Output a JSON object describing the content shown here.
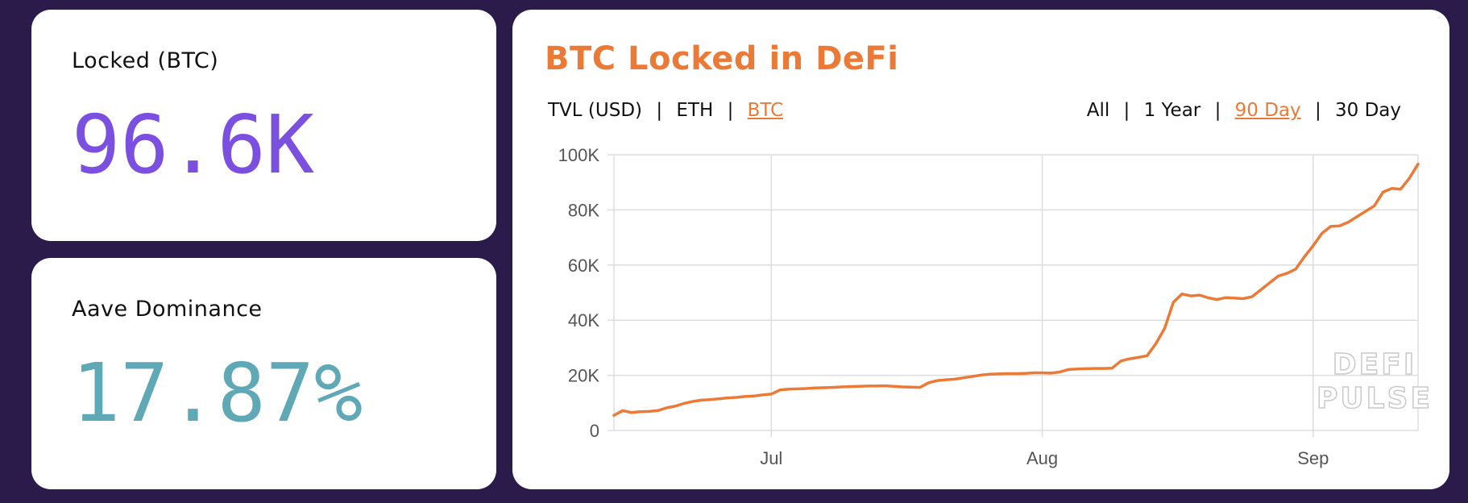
{
  "stats": {
    "locked": {
      "label": "Locked (BTC)",
      "value": "96.6K"
    },
    "dominance": {
      "label": "Aave Dominance",
      "value": "17.87%"
    }
  },
  "chart_header": {
    "title": "BTC Locked in DeFi",
    "units": [
      {
        "label": "TVL (USD)",
        "active": false
      },
      {
        "label": "ETH",
        "active": false
      },
      {
        "label": "BTC",
        "active": true
      }
    ],
    "ranges": [
      {
        "label": "All",
        "active": false
      },
      {
        "label": "1 Year",
        "active": false
      },
      {
        "label": "90 Day",
        "active": true
      },
      {
        "label": "30 Day",
        "active": false
      }
    ]
  },
  "colors": {
    "accent": "#ec7a37",
    "purple": "#7b4fe0",
    "teal": "#5fa8b5",
    "background": "#2a1b4b"
  },
  "watermark": [
    "DEFI",
    "PULSE"
  ],
  "chart_data": {
    "type": "line",
    "title": "BTC Locked in DeFi",
    "xlabel": "",
    "ylabel": "",
    "ylim": [
      0,
      100000
    ],
    "y_ticks": [
      0,
      20000,
      40000,
      60000,
      80000,
      100000
    ],
    "y_tick_labels": [
      "0",
      "20K",
      "40K",
      "60K",
      "80K",
      "100K"
    ],
    "x_ticks": [
      "2020-07-01",
      "2020-08-01",
      "2020-09-01"
    ],
    "x_tick_labels": [
      "Jul",
      "Aug",
      "Sep"
    ],
    "xlim": [
      "2020-06-13",
      "2020-09-13"
    ],
    "grid": true,
    "series": [
      {
        "color": "#ec7a37",
        "x": [
          "2020-06-13",
          "2020-06-14",
          "2020-06-15",
          "2020-06-16",
          "2020-06-17",
          "2020-06-18",
          "2020-06-19",
          "2020-06-20",
          "2020-06-21",
          "2020-06-22",
          "2020-06-23",
          "2020-06-24",
          "2020-06-25",
          "2020-06-26",
          "2020-06-27",
          "2020-06-28",
          "2020-06-29",
          "2020-06-30",
          "2020-07-01",
          "2020-07-02",
          "2020-07-03",
          "2020-07-04",
          "2020-07-05",
          "2020-07-06",
          "2020-07-07",
          "2020-07-08",
          "2020-07-09",
          "2020-07-10",
          "2020-07-11",
          "2020-07-12",
          "2020-07-13",
          "2020-07-14",
          "2020-07-15",
          "2020-07-16",
          "2020-07-17",
          "2020-07-18",
          "2020-07-19",
          "2020-07-20",
          "2020-07-21",
          "2020-07-22",
          "2020-07-23",
          "2020-07-24",
          "2020-07-25",
          "2020-07-26",
          "2020-07-27",
          "2020-07-28",
          "2020-07-29",
          "2020-07-30",
          "2020-07-31",
          "2020-08-01",
          "2020-08-02",
          "2020-08-03",
          "2020-08-04",
          "2020-08-05",
          "2020-08-06",
          "2020-08-07",
          "2020-08-08",
          "2020-08-09",
          "2020-08-10",
          "2020-08-11",
          "2020-08-12",
          "2020-08-13",
          "2020-08-14",
          "2020-08-15",
          "2020-08-16",
          "2020-08-17",
          "2020-08-18",
          "2020-08-19",
          "2020-08-20",
          "2020-08-21",
          "2020-08-22",
          "2020-08-23",
          "2020-08-24",
          "2020-08-25",
          "2020-08-26",
          "2020-08-27",
          "2020-08-28",
          "2020-08-29",
          "2020-08-30",
          "2020-08-31",
          "2020-09-01",
          "2020-09-02",
          "2020-09-03",
          "2020-09-04",
          "2020-09-05",
          "2020-09-06",
          "2020-09-07",
          "2020-09-08",
          "2020-09-09",
          "2020-09-10",
          "2020-09-11",
          "2020-09-12",
          "2020-09-13"
        ],
        "y": [
          5500,
          7200,
          6500,
          6800,
          6900,
          7200,
          8200,
          8800,
          9800,
          10500,
          11000,
          11200,
          11500,
          11800,
          12000,
          12300,
          12500,
          12900,
          13200,
          14700,
          15000,
          15100,
          15200,
          15400,
          15500,
          15600,
          15800,
          15900,
          16000,
          16100,
          16100,
          16200,
          16000,
          15800,
          15700,
          15600,
          17300,
          18100,
          18400,
          18600,
          19100,
          19600,
          20100,
          20400,
          20500,
          20600,
          20600,
          20700,
          20900,
          20900,
          20800,
          21200,
          22100,
          22300,
          22400,
          22500,
          22500,
          22600,
          25200,
          26000,
          26500,
          27100,
          31500,
          37000,
          46500,
          49500,
          48800,
          49100,
          48100,
          47500,
          48200,
          48000,
          47800,
          48500,
          51000,
          53500,
          56000,
          57000,
          58500,
          63000,
          67000,
          71500,
          74000,
          74200,
          75500,
          77500,
          79500,
          81500,
          86500,
          87800,
          87500,
          91500,
          96600
        ]
      }
    ]
  }
}
